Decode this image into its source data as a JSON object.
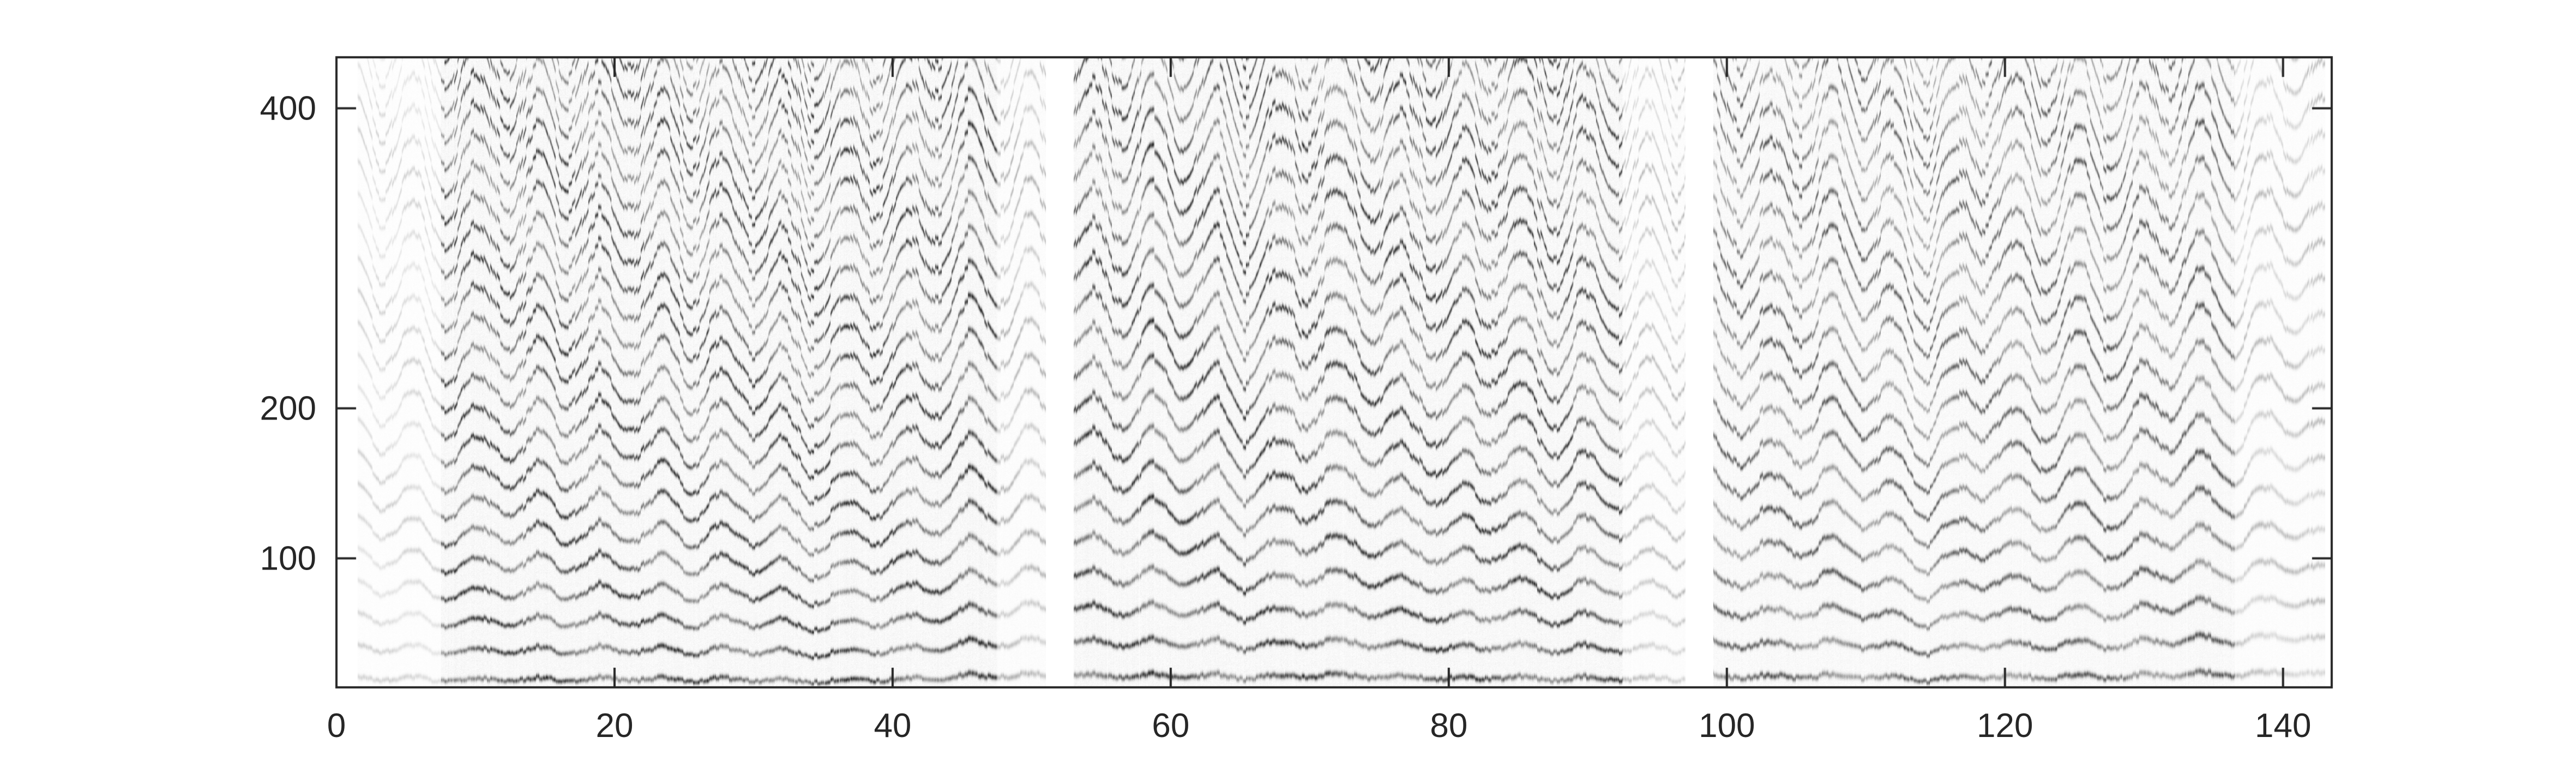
{
  "chart_data": {
    "type": "heatmap",
    "title": "",
    "xlabel": "",
    "ylabel": "",
    "xlim": [
      0,
      143.5
    ],
    "ylim": [
      14,
      434
    ],
    "colormap": "gray_r",
    "grid": false,
    "x_ticks": [
      "0",
      "20",
      "40",
      "60",
      "80",
      "100",
      "120",
      "140"
    ],
    "x_tick_values": [
      0,
      20,
      40,
      60,
      80,
      100,
      120,
      140
    ],
    "y_ticks": [
      "100",
      "200",
      "400"
    ],
    "y_tick_values": [
      100,
      200,
      400
    ],
    "active_segments": [
      {
        "x": [
          1.5,
          7.5
        ],
        "intensity": 0.2
      },
      {
        "x": [
          7.5,
          47.5
        ],
        "intensity": 0.9
      },
      {
        "x": [
          47.5,
          51
        ],
        "intensity": 0.35
      },
      {
        "x": [
          53,
          92.5
        ],
        "intensity": 0.9
      },
      {
        "x": [
          92.5,
          97
        ],
        "intensity": 0.3
      },
      {
        "x": [
          99,
          136.5
        ],
        "intensity": 0.75
      },
      {
        "x": [
          136.5,
          143
        ],
        "intensity": 0.3
      }
    ],
    "harmonic_spacing": 21
  },
  "colors": {
    "axis": "#262626",
    "background": "#ffffff"
  }
}
